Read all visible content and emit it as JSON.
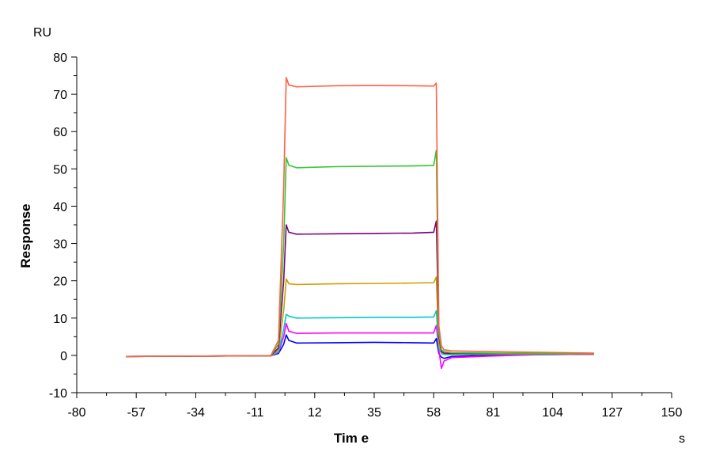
{
  "chart_data": {
    "type": "line",
    "title": "",
    "xlabel": "Tim e",
    "ylabel": "Response",
    "x_unit": "s",
    "y_unit": "RU",
    "xlim": [
      -80,
      150
    ],
    "ylim": [
      -10,
      80
    ],
    "x_ticks": [
      -80,
      -57,
      -34,
      -11,
      12,
      35,
      58,
      81,
      104,
      127,
      150
    ],
    "y_ticks": [
      -10,
      0,
      10,
      20,
      30,
      40,
      50,
      60,
      70,
      80
    ],
    "x_tick_labels": [
      "-80",
      "-57",
      "-34",
      "-11",
      "12",
      "35",
      "58",
      "81",
      "104",
      "127",
      "150"
    ],
    "y_tick_labels": [
      "-10",
      "0",
      "10",
      "20",
      "30",
      "40",
      "50",
      "60",
      "70",
      "80"
    ],
    "grid": false,
    "legend": "none",
    "series": [
      {
        "color": "#0000ff",
        "x": [
          -61,
          -30,
          -5,
          -2,
          0,
          1,
          2,
          5,
          20,
          35,
          50,
          58,
          59,
          60,
          61,
          62,
          65,
          80,
          100,
          120
        ],
        "y": [
          -0.3,
          -0.2,
          -0.1,
          0.5,
          3.0,
          5.5,
          4.0,
          3.3,
          3.4,
          3.5,
          3.4,
          3.3,
          4.5,
          0.5,
          -0.5,
          -0.8,
          -0.3,
          0.1,
          0.2,
          0.3
        ]
      },
      {
        "color": "#ff00ff",
        "x": [
          -61,
          -30,
          -5,
          -2,
          0,
          1,
          2,
          5,
          20,
          35,
          50,
          58,
          59,
          60,
          61,
          62,
          65,
          80,
          100,
          120
        ],
        "y": [
          -0.3,
          -0.2,
          -0.1,
          0.8,
          5.0,
          8.5,
          6.5,
          5.9,
          6.0,
          6.0,
          6.0,
          6.0,
          8.0,
          1.5,
          -3.5,
          -1.5,
          -0.6,
          -0.2,
          0.2,
          0.3
        ]
      },
      {
        "color": "#00c8c8",
        "x": [
          -61,
          -30,
          -5,
          -2,
          0,
          1,
          2,
          5,
          20,
          35,
          50,
          58,
          59,
          60,
          61,
          62,
          65,
          80,
          100,
          120
        ],
        "y": [
          -0.3,
          -0.2,
          -0.1,
          1.0,
          7.0,
          11.0,
          10.5,
          10.0,
          10.1,
          10.2,
          10.2,
          10.3,
          12.0,
          2.0,
          0.5,
          0.2,
          0.2,
          0.3,
          0.3,
          0.4
        ]
      },
      {
        "color": "#c8a000",
        "x": [
          -61,
          -30,
          -5,
          -2,
          0,
          1,
          2,
          5,
          20,
          35,
          50,
          58,
          59,
          60,
          61,
          62,
          65,
          80,
          100,
          120
        ],
        "y": [
          -0.3,
          -0.2,
          -0.1,
          1.5,
          12.0,
          20.5,
          19.2,
          19.0,
          19.2,
          19.3,
          19.4,
          19.5,
          21.0,
          3.0,
          0.8,
          0.5,
          0.4,
          0.4,
          0.4,
          0.4
        ]
      },
      {
        "color": "#800080",
        "x": [
          -61,
          -30,
          -5,
          -2,
          0,
          1,
          2,
          5,
          20,
          35,
          50,
          58,
          59,
          60,
          61,
          62,
          65,
          80,
          100,
          120
        ],
        "y": [
          -0.3,
          -0.2,
          -0.1,
          2.0,
          20.0,
          35.0,
          33.0,
          32.5,
          32.6,
          32.7,
          32.8,
          33.0,
          36.0,
          5.0,
          1.0,
          0.6,
          0.5,
          0.5,
          0.5,
          0.5
        ]
      },
      {
        "color": "#32c832",
        "x": [
          -61,
          -30,
          -5,
          -2,
          0,
          1,
          2,
          5,
          20,
          35,
          50,
          58,
          59,
          60,
          61,
          62,
          65,
          80,
          100,
          120
        ],
        "y": [
          -0.3,
          -0.2,
          -0.1,
          3.0,
          30.0,
          53.0,
          51.0,
          50.3,
          50.6,
          50.7,
          50.8,
          50.9,
          55.0,
          6.0,
          1.5,
          1.0,
          0.7,
          0.6,
          0.5,
          0.5
        ]
      },
      {
        "color": "#ff6040",
        "x": [
          -61,
          -30,
          -5,
          -2,
          0,
          1,
          2,
          5,
          20,
          35,
          50,
          58,
          59,
          60,
          61,
          62,
          65,
          80,
          100,
          120
        ],
        "y": [
          -0.3,
          -0.2,
          -0.1,
          4.0,
          45.0,
          74.5,
          72.5,
          72.0,
          72.3,
          72.4,
          72.3,
          72.2,
          73.0,
          8.0,
          2.5,
          1.5,
          1.2,
          1.0,
          0.8,
          0.6
        ]
      }
    ]
  }
}
